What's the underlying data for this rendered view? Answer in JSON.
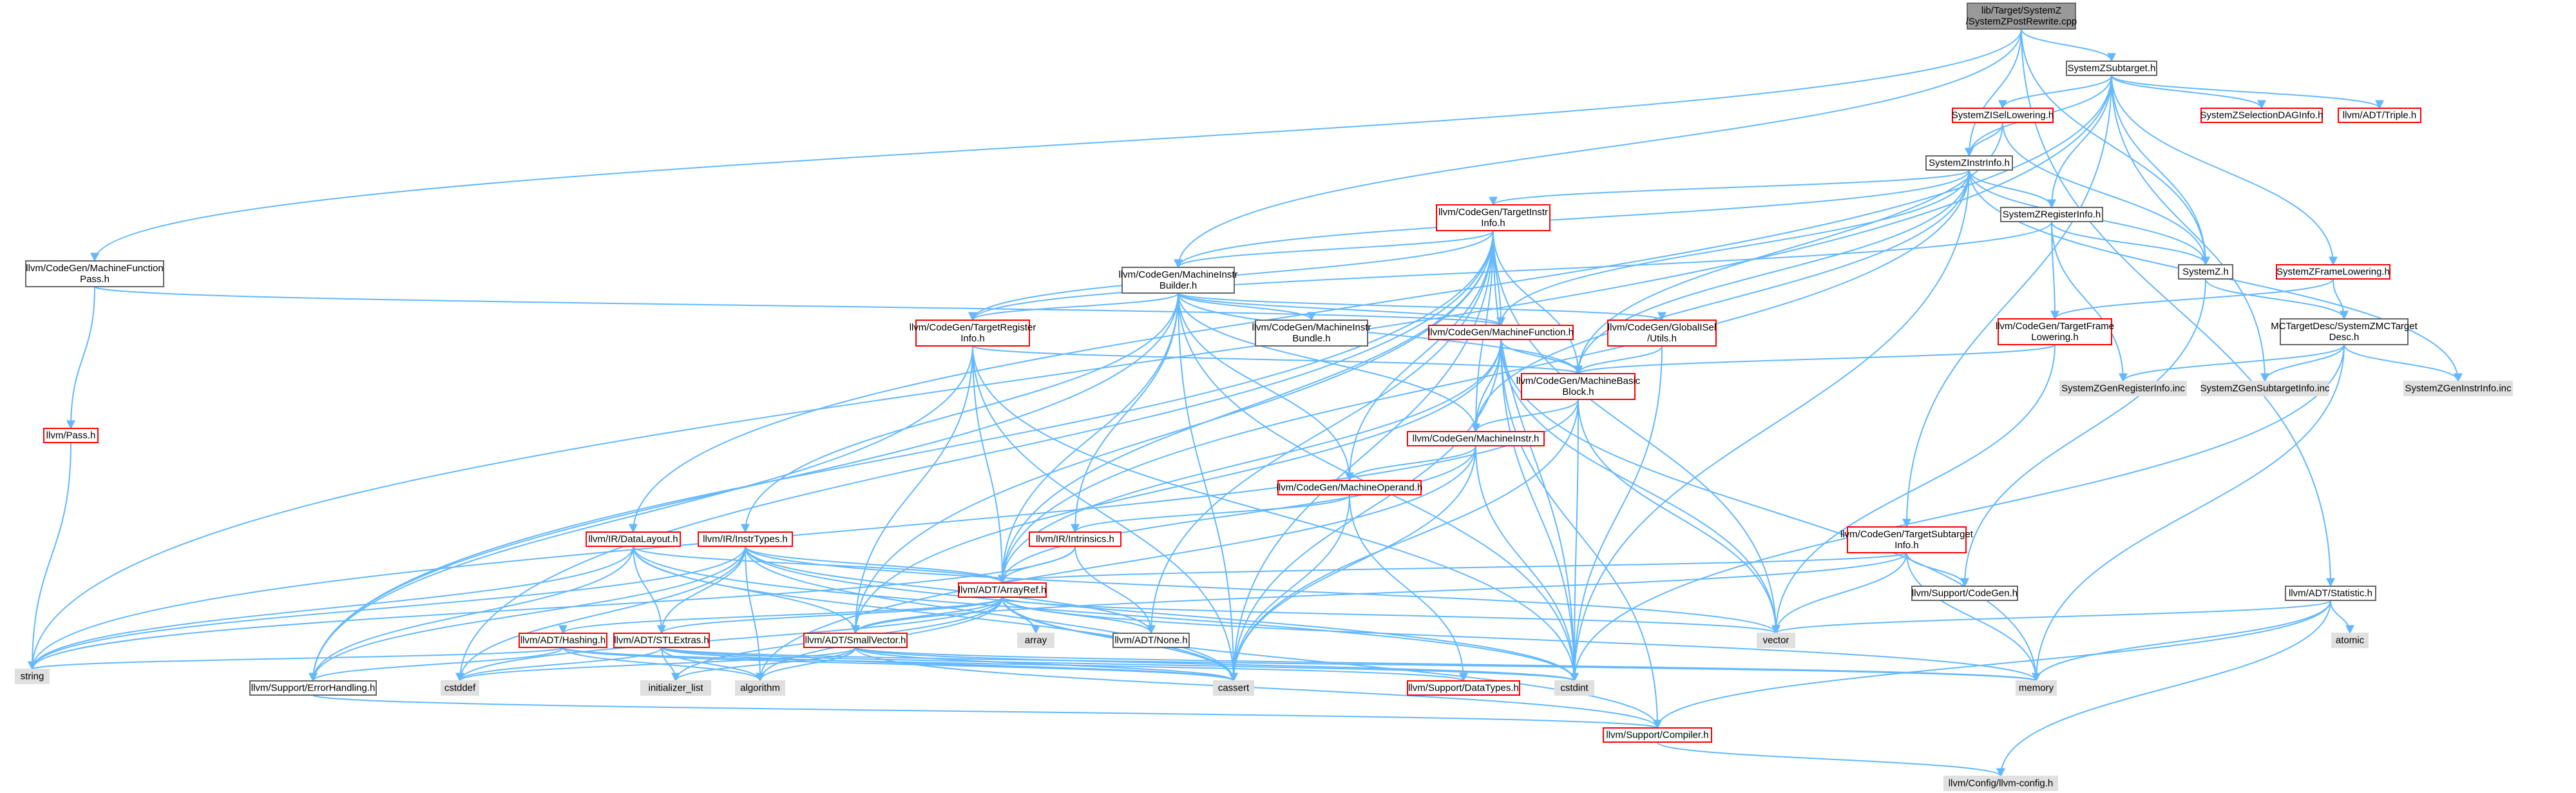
{
  "colors": {
    "edge": "#63b8ff",
    "border_default": "#666666",
    "border_red": "#ff0000",
    "fill_white": "#ffffff",
    "fill_gray": "#e0e0e0",
    "fill_root": "#999999",
    "border_root": "#666666",
    "text": "#000000"
  },
  "nodes": [
    {
      "id": "root",
      "lines": [
        "lib/Target/SystemZ",
        "/SystemZPostRewrite.cpp"
      ],
      "style": "root"
    },
    {
      "id": "szsubtarget",
      "lines": [
        "SystemZSubtarget.h"
      ],
      "style": "white"
    },
    {
      "id": "szisellowering",
      "lines": [
        "SystemZISelLowering.h"
      ],
      "style": "red"
    },
    {
      "id": "szseldag",
      "lines": [
        "SystemZSelectionDAGInfo.h"
      ],
      "style": "red"
    },
    {
      "id": "triple",
      "lines": [
        "llvm/ADT/Triple.h"
      ],
      "style": "red"
    },
    {
      "id": "szinstrinfo",
      "lines": [
        "SystemZInstrInfo.h"
      ],
      "style": "white"
    },
    {
      "id": "tii",
      "lines": [
        "llvm/CodeGen/TargetInstr",
        "Info.h"
      ],
      "style": "red"
    },
    {
      "id": "szreginfo",
      "lines": [
        "SystemZRegisterInfo.h"
      ],
      "style": "white"
    },
    {
      "id": "szh",
      "lines": [
        "SystemZ.h"
      ],
      "style": "white"
    },
    {
      "id": "szframelowering",
      "lines": [
        "SystemZFrameLowering.h"
      ],
      "style": "red"
    },
    {
      "id": "mfpass",
      "lines": [
        "llvm/CodeGen/MachineFunction",
        "Pass.h"
      ],
      "style": "white"
    },
    {
      "id": "mib",
      "lines": [
        "llvm/CodeGen/MachineInstr",
        "Builder.h"
      ],
      "style": "white"
    },
    {
      "id": "tri",
      "lines": [
        "llvm/CodeGen/TargetRegister",
        "Info.h"
      ],
      "style": "red"
    },
    {
      "id": "mibundle",
      "lines": [
        "llvm/CodeGen/MachineInstr",
        "Bundle.h"
      ],
      "style": "white"
    },
    {
      "id": "mf",
      "lines": [
        "llvm/CodeGen/MachineFunction.h"
      ],
      "style": "red"
    },
    {
      "id": "gisel",
      "lines": [
        "llvm/CodeGen/GlobalISel",
        "/Utils.h"
      ],
      "style": "red"
    },
    {
      "id": "tfl",
      "lines": [
        "llvm/CodeGen/TargetFrame",
        "Lowering.h"
      ],
      "style": "red"
    },
    {
      "id": "mctd",
      "lines": [
        "MCTargetDesc/SystemZMCTarget",
        "Desc.h"
      ],
      "style": "white"
    },
    {
      "id": "mbb",
      "lines": [
        "llvm/CodeGen/MachineBasic",
        "Block.h"
      ],
      "style": "red"
    },
    {
      "id": "genreg",
      "lines": [
        "SystemZGenRegisterInfo.inc"
      ],
      "style": "gray"
    },
    {
      "id": "gensub",
      "lines": [
        "SystemZGenSubtargetInfo.inc"
      ],
      "style": "gray"
    },
    {
      "id": "geninstr",
      "lines": [
        "SystemZGenInstrInfo.inc"
      ],
      "style": "gray"
    },
    {
      "id": "pass",
      "lines": [
        "llvm/Pass.h"
      ],
      "style": "red"
    },
    {
      "id": "mi",
      "lines": [
        "llvm/CodeGen/MachineInstr.h"
      ],
      "style": "red"
    },
    {
      "id": "mo",
      "lines": [
        "llvm/CodeGen/MachineOperand.h"
      ],
      "style": "red"
    },
    {
      "id": "datalayout",
      "lines": [
        "llvm/IR/DataLayout.h"
      ],
      "style": "red"
    },
    {
      "id": "instrtypes",
      "lines": [
        "llvm/IR/InstrTypes.h"
      ],
      "style": "red"
    },
    {
      "id": "intrinsics",
      "lines": [
        "llvm/IR/Intrinsics.h"
      ],
      "style": "red"
    },
    {
      "id": "tsi",
      "lines": [
        "llvm/CodeGen/TargetSubtarget",
        "Info.h"
      ],
      "style": "red"
    },
    {
      "id": "supportcg",
      "lines": [
        "llvm/Support/CodeGen.h"
      ],
      "style": "white"
    },
    {
      "id": "statistic",
      "lines": [
        "llvm/ADT/Statistic.h"
      ],
      "style": "white"
    },
    {
      "id": "arrayref",
      "lines": [
        "llvm/ADT/ArrayRef.h"
      ],
      "style": "red"
    },
    {
      "id": "array",
      "lines": [
        "array"
      ],
      "style": "gray"
    },
    {
      "id": "none",
      "lines": [
        "llvm/ADT/None.h"
      ],
      "style": "white"
    },
    {
      "id": "vector",
      "lines": [
        "vector"
      ],
      "style": "gray"
    },
    {
      "id": "atomic",
      "lines": [
        "atomic"
      ],
      "style": "gray"
    },
    {
      "id": "hashing",
      "lines": [
        "llvm/ADT/Hashing.h"
      ],
      "style": "red"
    },
    {
      "id": "stlextras",
      "lines": [
        "llvm/ADT/STLExtras.h"
      ],
      "style": "red"
    },
    {
      "id": "smallvector",
      "lines": [
        "llvm/ADT/SmallVector.h"
      ],
      "style": "red"
    },
    {
      "id": "string",
      "lines": [
        "string"
      ],
      "style": "gray"
    },
    {
      "id": "errorhandling",
      "lines": [
        "llvm/Support/ErrorHandling.h"
      ],
      "style": "white"
    },
    {
      "id": "cstddef",
      "lines": [
        "cstddef"
      ],
      "style": "gray"
    },
    {
      "id": "initlist",
      "lines": [
        "initializer_list"
      ],
      "style": "gray"
    },
    {
      "id": "algorithm",
      "lines": [
        "algorithm"
      ],
      "style": "gray"
    },
    {
      "id": "cassert",
      "lines": [
        "cassert"
      ],
      "style": "gray"
    },
    {
      "id": "datatypes",
      "lines": [
        "llvm/Support/DataTypes.h"
      ],
      "style": "red"
    },
    {
      "id": "cstdint",
      "lines": [
        "cstdint"
      ],
      "style": "gray"
    },
    {
      "id": "memory",
      "lines": [
        "memory"
      ],
      "style": "gray"
    },
    {
      "id": "compiler",
      "lines": [
        "llvm/Support/Compiler.h"
      ],
      "style": "red"
    },
    {
      "id": "config",
      "lines": [
        "llvm/Config/llvm-config.h"
      ],
      "style": "gray"
    }
  ],
  "edges": [
    [
      "root",
      "szsubtarget"
    ],
    [
      "root",
      "szinstrinfo"
    ],
    [
      "root",
      "szh"
    ],
    [
      "root",
      "mfpass"
    ],
    [
      "root",
      "mib"
    ],
    [
      "root",
      "statistic"
    ],
    [
      "szsubtarget",
      "szisellowering"
    ],
    [
      "szsubtarget",
      "szseldag"
    ],
    [
      "szsubtarget",
      "triple"
    ],
    [
      "szsubtarget",
      "szinstrinfo"
    ],
    [
      "szsubtarget",
      "szreginfo"
    ],
    [
      "szsubtarget",
      "szframelowering"
    ],
    [
      "szsubtarget",
      "gensub"
    ],
    [
      "szsubtarget",
      "tsi"
    ],
    [
      "szsubtarget",
      "datalayout"
    ],
    [
      "szsubtarget",
      "string"
    ],
    [
      "szsubtarget",
      "szh"
    ],
    [
      "szisellowering",
      "szinstrinfo"
    ],
    [
      "szisellowering",
      "szh"
    ],
    [
      "szisellowering",
      "mbb"
    ],
    [
      "szinstrinfo",
      "tii"
    ],
    [
      "szinstrinfo",
      "szreginfo"
    ],
    [
      "szinstrinfo",
      "szh"
    ],
    [
      "szinstrinfo",
      "mib"
    ],
    [
      "szinstrinfo",
      "mf"
    ],
    [
      "szinstrinfo",
      "mbb"
    ],
    [
      "szinstrinfo",
      "mi"
    ],
    [
      "szinstrinfo",
      "geninstr"
    ],
    [
      "szinstrinfo",
      "arrayref"
    ],
    [
      "szinstrinfo",
      "cstdint"
    ],
    [
      "tii",
      "mib"
    ],
    [
      "tii",
      "tri"
    ],
    [
      "tii",
      "mf"
    ],
    [
      "tii",
      "mbb"
    ],
    [
      "tii",
      "mi"
    ],
    [
      "tii",
      "mo"
    ],
    [
      "tii",
      "arrayref"
    ],
    [
      "tii",
      "none"
    ],
    [
      "tii",
      "errorhandling"
    ],
    [
      "tii",
      "cassert"
    ],
    [
      "tii",
      "cstdint"
    ],
    [
      "tii",
      "vector"
    ],
    [
      "tii",
      "cstddef"
    ],
    [
      "tii",
      "smallvector"
    ],
    [
      "szreginfo",
      "szh"
    ],
    [
      "szreginfo",
      "tfl"
    ],
    [
      "szreginfo",
      "genreg"
    ],
    [
      "szreginfo",
      "tri"
    ],
    [
      "szh",
      "mctd"
    ],
    [
      "szh",
      "supportcg"
    ],
    [
      "szframelowering",
      "tfl"
    ],
    [
      "szframelowering",
      "mctd"
    ],
    [
      "mctd",
      "genreg"
    ],
    [
      "mctd",
      "gensub"
    ],
    [
      "mctd",
      "geninstr"
    ],
    [
      "mctd",
      "memory"
    ],
    [
      "mctd",
      "cstdint"
    ],
    [
      "mfpass",
      "pass"
    ],
    [
      "mfpass",
      "mf"
    ],
    [
      "pass",
      "string"
    ],
    [
      "mib",
      "tri"
    ],
    [
      "mib",
      "mibundle"
    ],
    [
      "mib",
      "mf"
    ],
    [
      "mib",
      "gisel"
    ],
    [
      "mib",
      "mbb"
    ],
    [
      "mib",
      "mi"
    ],
    [
      "mib",
      "mo"
    ],
    [
      "mib",
      "instrtypes"
    ],
    [
      "mib",
      "intrinsics"
    ],
    [
      "mib",
      "arrayref"
    ],
    [
      "mib",
      "errorhandling"
    ],
    [
      "mib",
      "cassert"
    ],
    [
      "mib",
      "cstdint"
    ],
    [
      "tri",
      "mbb"
    ],
    [
      "tri",
      "arrayref"
    ],
    [
      "tri",
      "smallvector"
    ],
    [
      "tri",
      "errorhandling"
    ],
    [
      "tri",
      "cassert"
    ],
    [
      "tri",
      "cstdint"
    ],
    [
      "mf",
      "mbb"
    ],
    [
      "mf",
      "mi"
    ],
    [
      "mf",
      "arrayref"
    ],
    [
      "mf",
      "smallvector"
    ],
    [
      "mf",
      "cassert"
    ],
    [
      "mf",
      "cstdint"
    ],
    [
      "mf",
      "memory"
    ],
    [
      "mf",
      "vector"
    ],
    [
      "mf",
      "compiler"
    ],
    [
      "gisel",
      "mbb"
    ],
    [
      "gisel",
      "cstdint"
    ],
    [
      "tfl",
      "mbb"
    ],
    [
      "tfl",
      "vector"
    ],
    [
      "mbb",
      "mi"
    ],
    [
      "mbb",
      "string"
    ],
    [
      "mbb",
      "cassert"
    ],
    [
      "mbb",
      "cstdint"
    ],
    [
      "mbb",
      "vector"
    ],
    [
      "mi",
      "mo"
    ],
    [
      "mi",
      "arrayref"
    ],
    [
      "mi",
      "cassert"
    ],
    [
      "mi",
      "cstdint"
    ],
    [
      "mi",
      "algorithm"
    ],
    [
      "mo",
      "intrinsics"
    ],
    [
      "mo",
      "cassert"
    ],
    [
      "mo",
      "datatypes"
    ],
    [
      "datalayout",
      "arrayref"
    ],
    [
      "datalayout",
      "stlextras"
    ],
    [
      "datalayout",
      "smallvector"
    ],
    [
      "datalayout",
      "errorhandling"
    ],
    [
      "datalayout",
      "cassert"
    ],
    [
      "datalayout",
      "cstdint"
    ],
    [
      "datalayout",
      "string"
    ],
    [
      "instrtypes",
      "arrayref"
    ],
    [
      "instrtypes",
      "none"
    ],
    [
      "instrtypes",
      "stlextras"
    ],
    [
      "instrtypes",
      "errorhandling"
    ],
    [
      "instrtypes",
      "cstddef"
    ],
    [
      "instrtypes",
      "cassert"
    ],
    [
      "instrtypes",
      "cstdint"
    ],
    [
      "instrtypes",
      "vector"
    ],
    [
      "instrtypes",
      "algorithm"
    ],
    [
      "instrtypes",
      "string"
    ],
    [
      "intrinsics",
      "arrayref"
    ],
    [
      "intrinsics",
      "none"
    ],
    [
      "intrinsics",
      "string"
    ],
    [
      "tsi",
      "arrayref"
    ],
    [
      "tsi",
      "smallvector"
    ],
    [
      "tsi",
      "supportcg"
    ],
    [
      "tsi",
      "memory"
    ],
    [
      "tsi",
      "vector"
    ],
    [
      "statistic",
      "compiler"
    ],
    [
      "statistic",
      "config"
    ],
    [
      "statistic",
      "atomic"
    ],
    [
      "statistic",
      "memory"
    ],
    [
      "statistic",
      "vector"
    ],
    [
      "arrayref",
      "hashing"
    ],
    [
      "arrayref",
      "none"
    ],
    [
      "arrayref",
      "smallvector"
    ],
    [
      "arrayref",
      "compiler"
    ],
    [
      "arrayref",
      "algorithm"
    ],
    [
      "arrayref",
      "array"
    ],
    [
      "arrayref",
      "cassert"
    ],
    [
      "arrayref",
      "cstddef"
    ],
    [
      "arrayref",
      "initlist"
    ],
    [
      "arrayref",
      "iterator"
    ],
    [
      "arrayref",
      "memory"
    ],
    [
      "arrayref",
      "type_traits"
    ],
    [
      "arrayref",
      "vector"
    ],
    [
      "arrayref",
      "stlextras"
    ],
    [
      "hashing",
      "errorhandling"
    ],
    [
      "hashing",
      "datatypes"
    ],
    [
      "hashing",
      "algorithm"
    ],
    [
      "hashing",
      "cassert"
    ],
    [
      "hashing",
      "string"
    ],
    [
      "stlextras",
      "algorithm"
    ],
    [
      "stlextras",
      "cassert"
    ],
    [
      "stlextras",
      "cstddef"
    ],
    [
      "stlextras",
      "cstdint"
    ],
    [
      "stlextras",
      "initlist"
    ],
    [
      "stlextras",
      "memory"
    ],
    [
      "smallvector",
      "compiler"
    ],
    [
      "smallvector",
      "algorithm"
    ],
    [
      "smallvector",
      "cassert"
    ],
    [
      "smallvector",
      "cstddef"
    ],
    [
      "smallvector",
      "cstdint"
    ],
    [
      "smallvector",
      "initlist"
    ],
    [
      "smallvector",
      "memory"
    ],
    [
      "errorhandling",
      "compiler"
    ],
    [
      "compiler",
      "config"
    ]
  ]
}
